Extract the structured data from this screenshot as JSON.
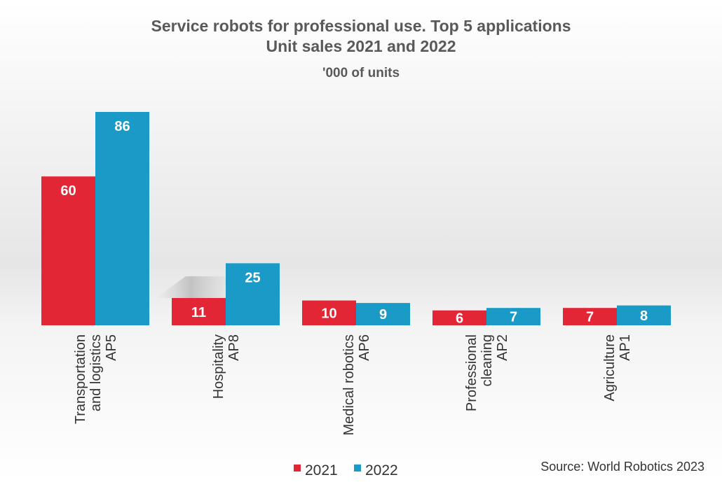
{
  "chart_data": {
    "type": "bar",
    "title": "Service robots for professional use. Top 5 applications",
    "subtitle": "Unit sales 2021 and 2022",
    "unit_label": "'000 of units",
    "source": "Source: World Robotics 2023",
    "categories": [
      [
        "Transportation",
        "and logistics",
        "AP5"
      ],
      [
        "Hospitality",
        "AP8"
      ],
      [
        "Medical robotics",
        "AP6"
      ],
      [
        "Professional",
        "cleaning",
        "AP2"
      ],
      [
        "Agriculture",
        "AP1"
      ]
    ],
    "series": [
      {
        "name": "2021",
        "color": "#e32636",
        "values": [
          60,
          11,
          10,
          6,
          7
        ]
      },
      {
        "name": "2022",
        "color": "#1a9bc7",
        "values": [
          86,
          25,
          9,
          7,
          8
        ]
      }
    ],
    "legend_position": "bottom",
    "grid": false,
    "ylim": [
      0,
      86
    ]
  }
}
